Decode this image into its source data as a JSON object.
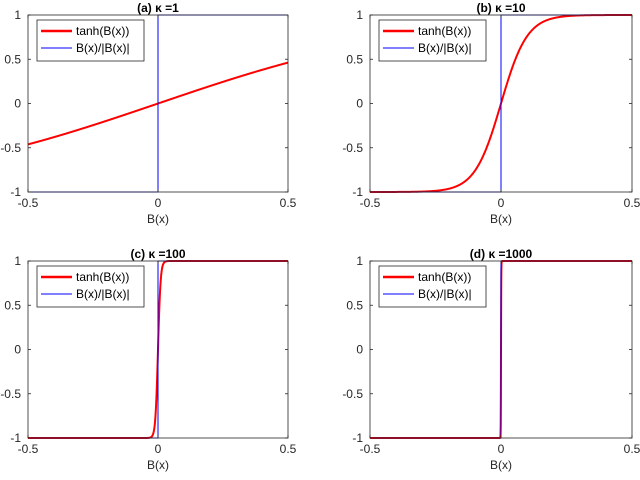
{
  "chart_data": [
    {
      "type": "line",
      "title": "(a) κ =1",
      "kappa": 1,
      "xlabel": "B(x)",
      "ylabel": "",
      "xlim": [
        -0.5,
        0.5
      ],
      "ylim": [
        -1,
        1
      ],
      "xticks": [
        "-0.5",
        "0",
        "0.5"
      ],
      "yticks": [
        "-1",
        "-0.5",
        "0",
        "0.5",
        "1"
      ],
      "legend": {
        "placement": "top-left",
        "entries": [
          "tanh(B(x))",
          "B(x)/|B(x)|"
        ]
      },
      "series": [
        {
          "name": "tanh(B(x))",
          "color": "#ff0000",
          "function": "tanh(kappa*x)"
        },
        {
          "name": "B(x)/|B(x)|",
          "color": "#0000ff",
          "function": "sign(x)"
        }
      ]
    },
    {
      "type": "line",
      "title": "(b) κ =10",
      "kappa": 10,
      "xlabel": "B(x)",
      "ylabel": "",
      "xlim": [
        -0.5,
        0.5
      ],
      "ylim": [
        -1,
        1
      ],
      "xticks": [
        "-0.5",
        "0",
        "0.5"
      ],
      "yticks": [
        "-1",
        "-0.5",
        "0",
        "0.5",
        "1"
      ],
      "legend": {
        "placement": "top-left",
        "entries": [
          "tanh(B(x))",
          "B(x)/|B(x)|"
        ]
      },
      "series": [
        {
          "name": "tanh(B(x))",
          "color": "#ff0000",
          "function": "tanh(kappa*x)"
        },
        {
          "name": "B(x)/|B(x)|",
          "color": "#0000ff",
          "function": "sign(x)"
        }
      ]
    },
    {
      "type": "line",
      "title": "(c) κ =100",
      "kappa": 100,
      "xlabel": "B(x)",
      "ylabel": "",
      "xlim": [
        -0.5,
        0.5
      ],
      "ylim": [
        -1,
        1
      ],
      "xticks": [
        "-0.5",
        "0",
        "0.5"
      ],
      "yticks": [
        "-1",
        "-0.5",
        "0",
        "0.5",
        "1"
      ],
      "legend": {
        "placement": "top-left",
        "entries": [
          "tanh(B(x))",
          "B(x)/|B(x)|"
        ]
      },
      "series": [
        {
          "name": "tanh(B(x))",
          "color": "#ff0000",
          "function": "tanh(kappa*x)"
        },
        {
          "name": "B(x)/|B(x)|",
          "color": "#0000ff",
          "function": "sign(x)"
        }
      ]
    },
    {
      "type": "line",
      "title": "(d) κ =1000",
      "kappa": 1000,
      "xlabel": "B(x)",
      "ylabel": "",
      "xlim": [
        -0.5,
        0.5
      ],
      "ylim": [
        -1,
        1
      ],
      "xticks": [
        "-0.5",
        "0",
        "0.5"
      ],
      "yticks": [
        "-1",
        "-0.5",
        "0",
        "0.5",
        "1"
      ],
      "legend": {
        "placement": "top-left",
        "entries": [
          "tanh(B(x))",
          "B(x)/|B(x)|"
        ]
      },
      "series": [
        {
          "name": "tanh(B(x))",
          "color": "#ff0000",
          "function": "tanh(kappa*x)"
        },
        {
          "name": "B(x)/|B(x)|",
          "color": "#0000ff",
          "function": "sign(x)"
        }
      ]
    }
  ]
}
